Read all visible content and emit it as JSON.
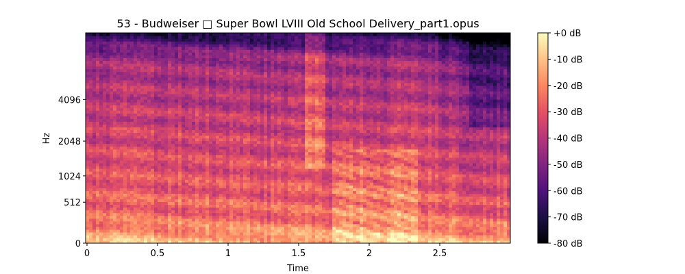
{
  "chart_data": {
    "type": "heatmap",
    "title": "53 - Budweiser □ Super Bowl LVIII Old School Delivery_part1.opus",
    "xlabel": "Time",
    "ylabel": "Hz",
    "x_scale": "linear",
    "y_scale": "mel",
    "xlim": [
      0,
      3.0
    ],
    "ylim": [
      0,
      11025
    ],
    "x_ticks": [
      {
        "value": 0,
        "label": "0"
      },
      {
        "value": 0.5,
        "label": "0.5"
      },
      {
        "value": 1,
        "label": "1"
      },
      {
        "value": 1.5,
        "label": "1.5"
      },
      {
        "value": 2,
        "label": "2"
      },
      {
        "value": 2.5,
        "label": "2.5"
      }
    ],
    "y_ticks": [
      {
        "value": 0,
        "label": "0"
      },
      {
        "value": 512,
        "label": "512"
      },
      {
        "value": 1024,
        "label": "1024"
      },
      {
        "value": 2048,
        "label": "2048"
      },
      {
        "value": 4096,
        "label": "4096"
      }
    ],
    "colormap": "magma",
    "colormap_stops": [
      "#000004",
      "#1c1044",
      "#4f127b",
      "#812581",
      "#b5367a",
      "#e55064",
      "#fb8761",
      "#fec287",
      "#fcfdbf"
    ],
    "colorbar": {
      "range": [
        -80,
        0
      ],
      "unit": "dB",
      "ticks": [
        {
          "value": 0,
          "label": "+0 dB"
        },
        {
          "value": -10,
          "label": "-10 dB"
        },
        {
          "value": -20,
          "label": "-20 dB"
        },
        {
          "value": -30,
          "label": "-30 dB"
        },
        {
          "value": -40,
          "label": "-40 dB"
        },
        {
          "value": -50,
          "label": "-50 dB"
        },
        {
          "value": -60,
          "label": "-60 dB"
        },
        {
          "value": -70,
          "label": "-70 dB"
        },
        {
          "value": -80,
          "label": "-80 dB"
        }
      ]
    }
  }
}
